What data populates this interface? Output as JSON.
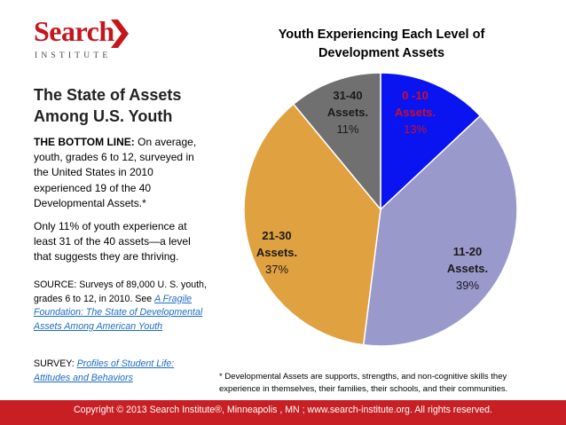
{
  "logo": {
    "word": "Search",
    "sub": "INSTITUTE"
  },
  "left": {
    "title_line1": "The State of Assets",
    "title_line2": "Among U.S. Youth",
    "bottom_line_label": "THE BOTTOM LINE:",
    "bottom_line_text": " On average, youth, grades 6 to 12, surveyed in the United States in 2010 experienced 19 of the 40 Developmental Assets.*",
    "only_text": "Only 11% of youth experience at least 31 of the 40 assets—a level that suggests they are thriving.",
    "source_text": "SOURCE: Surveys of 89,000 U. S. youth, grades 6 to 12, in 2010. See ",
    "source_link": "A Fragile Foundation: The State of Developmental Assets Among American Youth",
    "survey_label": "SURVEY: ",
    "survey_link": "Profiles of Student Life: Attitudes and Behaviors"
  },
  "chart_data": {
    "type": "pie",
    "title": "Youth Experiencing Each Level of Development Assets",
    "slices": [
      {
        "label_line1": "0 -10",
        "label_line2": "Assets.",
        "value": 13,
        "pct": "13%",
        "color": "#0a14f0"
      },
      {
        "label_line1": "11-20",
        "label_line2": "Assets.",
        "value": 39,
        "pct": "39%",
        "color": "#9999cc"
      },
      {
        "label_line1": "21-30",
        "label_line2": "Assets.",
        "value": 37,
        "pct": "37%",
        "color": "#e0a140"
      },
      {
        "label_line1": "31-40",
        "label_line2": "Assets.",
        "value": 11,
        "pct": "11%",
        "color": "#707070"
      }
    ],
    "start": "12 o'clock",
    "direction": "clockwise"
  },
  "footnote": "* Developmental Assets are supports, strengths, and non-cognitive skills they experience in themselves, their families, their schools, and their communities.",
  "footer": {
    "text": "Copyright © 2013 Search Institute®, Minneapolis , MN ; www.search-institute.org. All rights reserved."
  },
  "colors": {
    "brand_red": "#c5161d",
    "footer_red": "#c71f24",
    "link_blue": "#1e6cc4"
  }
}
